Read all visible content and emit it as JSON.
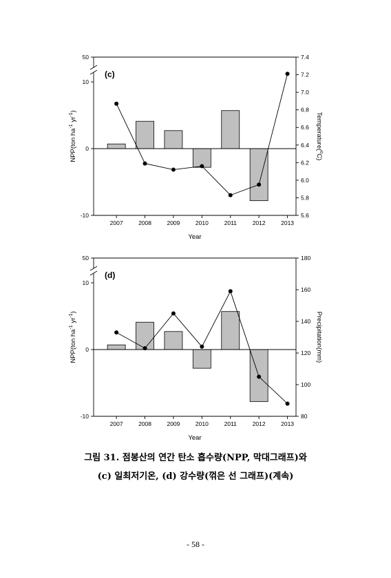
{
  "page": {
    "caption_line1": "그림 31. 점봉산의 연간 탄소 흡수량(NPP, 막대그래프)와",
    "caption_line2": "(c) 일최저기온, (d) 강수량(꺾은 선 그래프)(계속)",
    "page_number": "- 58 -"
  },
  "chart_data": [
    {
      "panel_label": "(c)",
      "type": "bar",
      "x": [
        2007,
        2008,
        2009,
        2010,
        2011,
        2012,
        2013
      ],
      "x_tick_labels": [
        "2007",
        "2008",
        "2009",
        "2010",
        "2011",
        "2012",
        "2013"
      ],
      "xlabel": "Year",
      "xlim": [
        2006.2,
        2013.3
      ],
      "grid": false,
      "zero_line": true,
      "series": [
        {
          "type": "bar",
          "axis": "left",
          "values": [
            0.7,
            4.1,
            2.7,
            -2.8,
            5.7,
            -7.8,
            null
          ],
          "color": "#bfbfbf"
        },
        {
          "type": "line",
          "axis": "right",
          "values": [
            6.87,
            6.19,
            6.12,
            6.16,
            5.83,
            5.95,
            7.21
          ],
          "color": "#000000",
          "marker": "filled-circle"
        }
      ],
      "y_left": {
        "range": [
          -10,
          50
        ],
        "break": [
          10,
          50
        ],
        "ticks": [
          -10,
          0,
          10,
          50
        ],
        "tick_labels": [
          "-10",
          "0",
          "10",
          "50"
        ],
        "label": [
          {
            "text": "NPP(ton ha"
          },
          {
            "text": "-1",
            "sup": true
          },
          {
            "text": " yr"
          },
          {
            "text": "-1",
            "sup": true
          },
          {
            "text": ")"
          }
        ]
      },
      "y_right": {
        "range": [
          5.6,
          7.4
        ],
        "ticks": [
          5.6,
          5.8,
          6.0,
          6.2,
          6.4,
          6.6,
          6.8,
          7.0,
          7.2,
          7.4
        ],
        "tick_labels": [
          "5.6",
          "5.8",
          "6.0",
          "6.2",
          "6.4",
          "6.6",
          "6.8",
          "7.0",
          "7.2",
          "7.4"
        ],
        "label": [
          {
            "text": "Temperature("
          },
          {
            "text": "o",
            "sup": true
          },
          {
            "text": "C)"
          }
        ]
      }
    },
    {
      "panel_label": "(d)",
      "type": "bar",
      "x": [
        2007,
        2008,
        2009,
        2010,
        2011,
        2012,
        2013
      ],
      "x_tick_labels": [
        "2007",
        "2008",
        "2009",
        "2010",
        "2011",
        "2012",
        "2013"
      ],
      "xlabel": "Year",
      "xlim": [
        2006.2,
        2013.3
      ],
      "grid": false,
      "zero_line": true,
      "series": [
        {
          "type": "bar",
          "axis": "left",
          "values": [
            0.7,
            4.1,
            2.7,
            -2.8,
            5.7,
            -7.8,
            null
          ],
          "color": "#bfbfbf"
        },
        {
          "type": "line",
          "axis": "right",
          "values": [
            133,
            123,
            145,
            124,
            159,
            105,
            88
          ],
          "color": "#000000",
          "marker": "filled-circle"
        }
      ],
      "y_left": {
        "range": [
          -10,
          50
        ],
        "break": [
          10,
          50
        ],
        "ticks": [
          -10,
          0,
          10,
          50
        ],
        "tick_labels": [
          "-10",
          "0",
          "10",
          "50"
        ],
        "label": [
          {
            "text": "NPP(ton ha"
          },
          {
            "text": "-1",
            "sup": true
          },
          {
            "text": " yr"
          },
          {
            "text": "-1",
            "sup": true
          },
          {
            "text": ")"
          }
        ]
      },
      "y_right": {
        "range": [
          80,
          180
        ],
        "ticks": [
          80,
          100,
          120,
          140,
          160,
          180
        ],
        "tick_labels": [
          "80",
          "100",
          "120",
          "140",
          "160",
          "180"
        ],
        "label": [
          {
            "text": "Precipitation(mm)"
          }
        ]
      }
    }
  ]
}
